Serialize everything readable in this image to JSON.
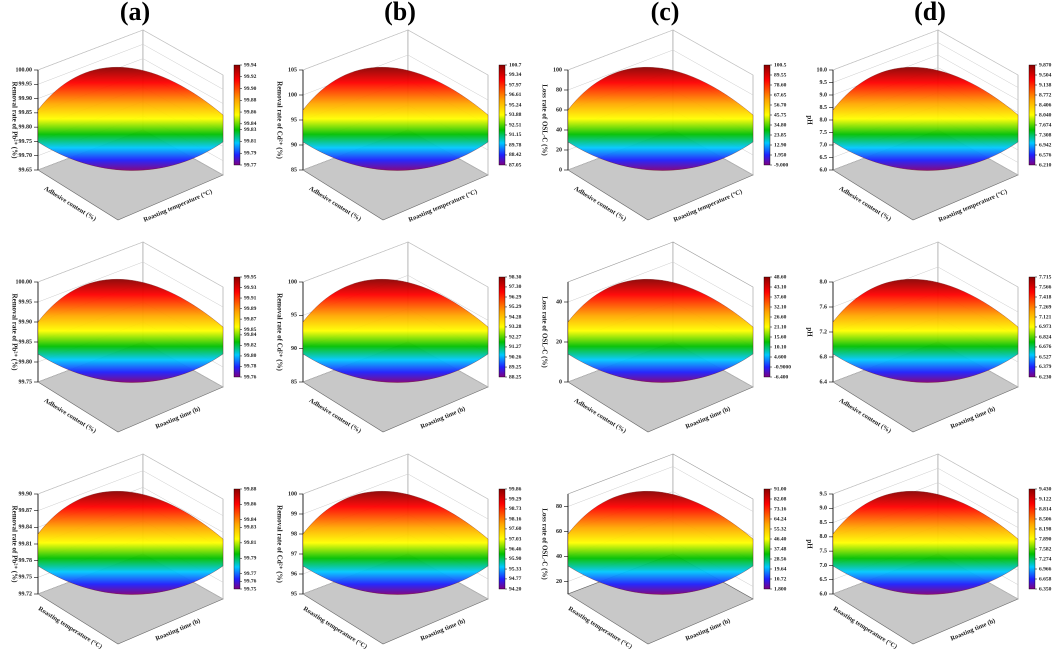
{
  "panel_labels": [
    "(a)",
    "(b)",
    "(c)",
    "(d)"
  ],
  "chart_data": [
    {
      "type": "surface",
      "z_label": "Removal rate of Pb²⁺ (%)",
      "x_label": "Adhesive content (%)",
      "y_label": "Roasting temperature (°C)",
      "zlim": [
        99.65,
        100
      ],
      "zticks": [
        {
          "value": 100,
          "label": "100.00"
        },
        99.95,
        {
          "value": 99.9,
          "label": "99.90"
        },
        99.85,
        {
          "value": 99.8,
          "label": "99.80"
        },
        99.75,
        {
          "value": 99.7,
          "label": "99.70"
        },
        99.65
      ],
      "clim": [
        99.77,
        99.94
      ],
      "cticks": [
        99.94,
        99.92,
        {
          "value": 99.9,
          "label": "99.90"
        },
        99.88,
        99.86,
        99.84,
        99.83,
        99.81,
        99.79,
        99.77
      ]
    },
    {
      "type": "surface",
      "z_label": "Removal rate of Cd²⁺ (%)",
      "x_label": "Adhesive content (%)",
      "y_label": "Roasting temperature (°C)",
      "zlim": [
        85,
        105
      ],
      "zticks": [
        105,
        100,
        95,
        90,
        85
      ],
      "clim": [
        87.05,
        100.7
      ],
      "cticks": [
        100.7,
        99.34,
        97.97,
        96.61,
        95.24,
        93.88,
        92.51,
        91.15,
        89.78,
        88.42,
        87.05
      ]
    },
    {
      "type": "surface",
      "z_label": "Loss rate of OSL-C (%)",
      "x_label": "Adhesive content (%)",
      "y_label": "Roasting temperature (°C)",
      "zlim": [
        0,
        100
      ],
      "zticks": [
        100,
        80,
        60,
        40,
        20,
        0
      ],
      "clim": [
        -9,
        100.5
      ],
      "cticks": [
        100.5,
        89.55,
        {
          "value": 78.6,
          "label": "78.60"
        },
        67.65,
        {
          "value": 56.7,
          "label": "56.70"
        },
        45.75,
        {
          "value": 34.8,
          "label": "34.80"
        },
        23.85,
        {
          "value": 12.9,
          "label": "12.90"
        },
        {
          "value": 1.95,
          "label": "1.950"
        },
        {
          "value": -9,
          "label": "-9.000"
        }
      ]
    },
    {
      "type": "surface",
      "z_label": "pH",
      "x_label": "Adhesive content (%)",
      "y_label": "Roasting temperature (°C)",
      "zlim": [
        6,
        10
      ],
      "zticks": [
        {
          "value": 10,
          "label": "10.0"
        },
        9.5,
        {
          "value": 9,
          "label": "9.0"
        },
        8.5,
        {
          "value": 8,
          "label": "8.0"
        },
        7.5,
        {
          "value": 7,
          "label": "7.0"
        },
        6.5,
        {
          "value": 6,
          "label": "6.0"
        }
      ],
      "clim": [
        6.21,
        9.87
      ],
      "cticks": [
        {
          "value": 9.87,
          "label": "9.870"
        },
        9.504,
        9.138,
        8.772,
        8.406,
        {
          "value": 8.04,
          "label": "8.040"
        },
        7.674,
        7.308,
        6.942,
        6.576,
        {
          "value": 6.21,
          "label": "6.210"
        }
      ]
    },
    {
      "type": "surface",
      "z_label": "Removal rate of Pb²⁺ (%)",
      "x_label": "Adhesive content (%)",
      "y_label": "Roasting time (h)",
      "zlim": [
        99.75,
        100
      ],
      "zticks": [
        {
          "value": 100,
          "label": "100.00"
        },
        99.95,
        {
          "value": 99.9,
          "label": "99.90"
        },
        99.85,
        {
          "value": 99.8,
          "label": "99.80"
        },
        99.75
      ],
      "clim": [
        99.76,
        99.95
      ],
      "cticks": [
        99.95,
        99.93,
        99.91,
        99.89,
        99.87,
        99.85,
        99.84,
        99.82,
        {
          "value": 99.8,
          "label": "99.80"
        },
        99.78,
        99.76
      ]
    },
    {
      "type": "surface",
      "z_label": "Removal rate of Cd²⁺ (%)",
      "x_label": "Adhesive content (%)",
      "y_label": "Roasting time (h)",
      "zlim": [
        85,
        100
      ],
      "zticks": [
        100,
        95,
        90,
        85
      ],
      "clim": [
        88.25,
        98.3
      ],
      "cticks": [
        {
          "value": 98.3,
          "label": "98.30"
        },
        {
          "value": 97.3,
          "label": "97.30"
        },
        96.29,
        95.29,
        94.28,
        93.28,
        92.27,
        91.27,
        90.26,
        89.25,
        88.25
      ]
    },
    {
      "type": "surface",
      "z_label": "Loss rate of OSL-C (%)",
      "x_label": "Adhesive content (%)",
      "y_label": "Roasting time (h)",
      "zlim": [
        0,
        50
      ],
      "zticks": [
        40,
        20,
        0
      ],
      "clim": [
        -6.4,
        48.6
      ],
      "cticks": [
        {
          "value": 48.6,
          "label": "48.60"
        },
        {
          "value": 43.1,
          "label": "43.10"
        },
        {
          "value": 37.6,
          "label": "37.60"
        },
        {
          "value": 32.1,
          "label": "32.10"
        },
        {
          "value": 26.6,
          "label": "26.60"
        },
        {
          "value": 21.1,
          "label": "21.10"
        },
        {
          "value": 15.6,
          "label": "15.60"
        },
        {
          "value": 10.1,
          "label": "10.10"
        },
        {
          "value": 4.6,
          "label": "4.600"
        },
        {
          "value": -0.9,
          "label": "-0.9000"
        },
        {
          "value": -6.4,
          "label": "-6.400"
        }
      ]
    },
    {
      "type": "surface",
      "z_label": "pH",
      "x_label": "Adhesive content (%)",
      "y_label": "Roasting time (h)",
      "zlim": [
        6.4,
        8
      ],
      "zticks": [
        {
          "value": 8,
          "label": "8.0"
        },
        7.6,
        7.2,
        6.8,
        6.4
      ],
      "clim": [
        6.23,
        7.715
      ],
      "cticks": [
        7.715,
        7.566,
        7.418,
        7.269,
        7.121,
        6.973,
        6.824,
        6.676,
        6.527,
        6.379,
        {
          "value": 6.23,
          "label": "6.230"
        }
      ]
    },
    {
      "type": "surface",
      "z_label": "Removal rate of Pb²⁺ (%)",
      "x_label": "Roasting temperature (°C)",
      "y_label": "Roasting time (h)",
      "zlim": [
        99.72,
        99.9
      ],
      "zticks": [
        {
          "value": 99.9,
          "label": "99.90"
        },
        99.87,
        99.84,
        99.81,
        99.78,
        99.75,
        99.72
      ],
      "clim": [
        99.75,
        99.88
      ],
      "cticks": [
        99.88,
        99.86,
        99.84,
        99.83,
        99.81,
        99.79,
        99.77,
        99.76,
        99.75
      ]
    },
    {
      "type": "surface",
      "z_label": "Removal rate of Cd²⁺ (%)",
      "x_label": "Roasting temperature (°C)",
      "y_label": "Roasting time (h)",
      "zlim": [
        95,
        100
      ],
      "zticks": [
        100,
        99,
        98,
        97,
        96,
        95
      ],
      "clim": [
        94.2,
        99.86
      ],
      "cticks": [
        99.86,
        99.29,
        98.73,
        98.16,
        {
          "value": 97.6,
          "label": "97.60"
        },
        97.03,
        96.46,
        {
          "value": 95.9,
          "label": "95.90"
        },
        95.33,
        94.77,
        {
          "value": 94.2,
          "label": "94.20"
        }
      ]
    },
    {
      "type": "surface",
      "z_label": "Loss rate of OSL-C (%)",
      "x_label": "Roasting temperature (°C)",
      "y_label": "Roasting time (h)",
      "zlim": [
        10,
        90
      ],
      "zticks": [
        80,
        60,
        40,
        20
      ],
      "clim": [
        1.8,
        91
      ],
      "cticks": [
        {
          "value": 91,
          "label": "91.00"
        },
        82.08,
        73.16,
        64.24,
        55.32,
        {
          "value": 46.4,
          "label": "46.40"
        },
        37.48,
        28.56,
        19.64,
        10.72,
        {
          "value": 1.8,
          "label": "1.800"
        }
      ]
    },
    {
      "type": "surface",
      "z_label": "pH",
      "x_label": "Roasting temperature (°C)",
      "y_label": "Roasting time (h)",
      "zlim": [
        6,
        9.5
      ],
      "zticks": [
        9.5,
        {
          "value": 9,
          "label": "9.0"
        },
        8.5,
        {
          "value": 8,
          "label": "8.0"
        },
        7.5,
        {
          "value": 7,
          "label": "7.0"
        },
        6.5,
        {
          "value": 6,
          "label": "6.0"
        }
      ],
      "clim": [
        6.35,
        9.43
      ],
      "cticks": [
        {
          "value": 9.43,
          "label": "9.430"
        },
        9.122,
        8.814,
        8.506,
        8.198,
        {
          "value": 7.89,
          "label": "7.890"
        },
        7.582,
        7.274,
        6.966,
        6.658,
        {
          "value": 6.35,
          "label": "6.350"
        }
      ]
    }
  ]
}
